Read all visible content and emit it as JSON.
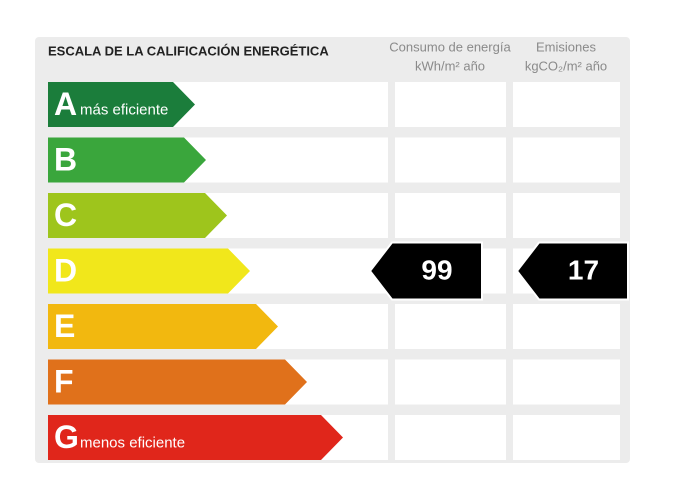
{
  "title": "ESCALA DE LA CALIFICACIÓN ENERGÉTICA",
  "columns": [
    {
      "name": "Consumo de energía",
      "unit": "kWh/m² año"
    },
    {
      "name": "Emisiones",
      "unit": "kgCO₂/m² año"
    }
  ],
  "ratings": [
    {
      "letter": "A",
      "label": "más eficiente",
      "color": "#1b7d3b"
    },
    {
      "letter": "B",
      "color": "#3aa63c"
    },
    {
      "letter": "C",
      "color": "#9ec51c"
    },
    {
      "letter": "D",
      "color": "#f1e71b",
      "energy": 99,
      "emissions": 17
    },
    {
      "letter": "E",
      "color": "#f2b80f"
    },
    {
      "letter": "F",
      "color": "#e0711b"
    },
    {
      "letter": "G",
      "label": "menos eficiente",
      "color": "#e0261b"
    }
  ]
}
